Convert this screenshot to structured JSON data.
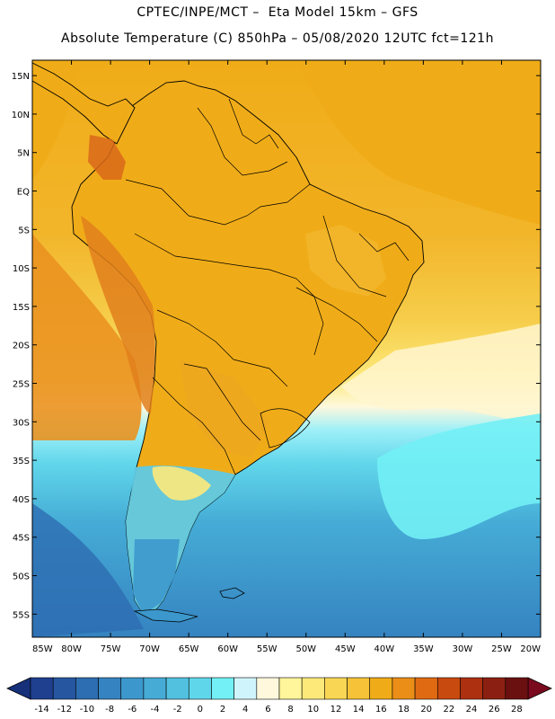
{
  "header": {
    "line1": "CPTEC/INPE/MCT –  Eta Model 15km – GFS",
    "line2": "Absolute Temperature (C) 850hPa – 05/08/2020 12UTC fct=121h"
  },
  "map": {
    "lon_range": [
      -85,
      -20
    ],
    "lat_range": [
      -58,
      17
    ],
    "lat_labels": [
      "15N",
      "10N",
      "5N",
      "EQ",
      "5S",
      "10S",
      "15S",
      "20S",
      "25S",
      "30S",
      "35S",
      "40S",
      "45S",
      "50S",
      "55S"
    ],
    "lat_values": [
      15,
      10,
      5,
      0,
      -5,
      -10,
      -15,
      -20,
      -25,
      -30,
      -35,
      -40,
      -45,
      -50,
      -55
    ],
    "lon_labels": [
      "85W",
      "80W",
      "75W",
      "70W",
      "65W",
      "60W",
      "55W",
      "50W",
      "45W",
      "40W",
      "35W",
      "30W",
      "25W",
      "20W"
    ],
    "lon_values": [
      -85,
      -80,
      -75,
      -70,
      -65,
      -60,
      -55,
      -50,
      -45,
      -40,
      -35,
      -30,
      -25,
      -20
    ]
  },
  "colorbar": {
    "labels": [
      "-14",
      "-12",
      "-10",
      "-8",
      "-6",
      "-4",
      "-2",
      "0",
      "2",
      "4",
      "6",
      "8",
      "10",
      "12",
      "14",
      "16",
      "18",
      "20",
      "22",
      "24",
      "26",
      "28"
    ],
    "colors": [
      "#1f3f8f",
      "#2656a0",
      "#2d6db1",
      "#3583c0",
      "#3c98cc",
      "#46acd6",
      "#52c1e0",
      "#60d6ea",
      "#72f0f5",
      "#d0f4fc",
      "#fff8dc",
      "#fff59a",
      "#fde97a",
      "#fad655",
      "#f6c338",
      "#f0ac18",
      "#ea8e18",
      "#e06a12",
      "#c94a0e",
      "#ad3110",
      "#8b2012",
      "#6a1010"
    ],
    "under_color": "#16307a",
    "over_color": "#7a0a1e"
  },
  "colors": {
    "ocean_south": "#3a8fce",
    "ocean_cold": "#46acd6",
    "ocean_mid": "#72e6f2",
    "ocean_warm": "#f4ca45",
    "land_main": "#f0ac18",
    "land_warm": "#e98e1d",
    "andes_hot": "#d9681a",
    "boundary": "#000000"
  }
}
